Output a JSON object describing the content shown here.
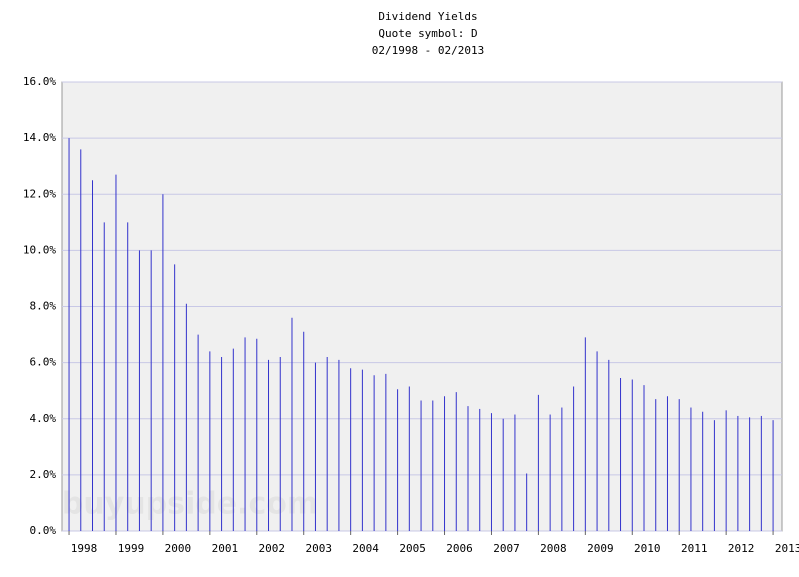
{
  "chart_data": {
    "type": "bar",
    "title": "Dividend Yields",
    "subtitle": "Quote symbol: D",
    "date_range": "02/1998 - 02/2013",
    "watermark": "buyupside.com",
    "color": "#3333cc",
    "grid": true,
    "x": [
      1998,
      1998.25,
      1998.5,
      1998.75,
      1999,
      1999.25,
      1999.5,
      1999.75,
      2000,
      2000.25,
      2000.5,
      2000.75,
      2001,
      2001.25,
      2001.5,
      2001.75,
      2002,
      2002.25,
      2002.5,
      2002.75,
      2003,
      2003.25,
      2003.5,
      2003.75,
      2004,
      2004.25,
      2004.5,
      2004.75,
      2005,
      2005.25,
      2005.5,
      2005.75,
      2006,
      2006.25,
      2006.5,
      2006.75,
      2007,
      2007.25,
      2007.5,
      2007.75,
      2008,
      2008.25,
      2008.5,
      2008.75,
      2009,
      2009.25,
      2009.5,
      2009.75,
      2010,
      2010.25,
      2010.5,
      2010.75,
      2011,
      2011.25,
      2011.5,
      2011.75,
      2012,
      2012.25,
      2012.5,
      2012.75,
      2013
    ],
    "values": [
      14.0,
      13.6,
      12.5,
      11.0,
      12.7,
      11.0,
      10.0,
      10.0,
      12.0,
      9.5,
      8.1,
      7.0,
      6.4,
      6.2,
      6.5,
      6.9,
      6.85,
      6.1,
      6.2,
      7.6,
      7.1,
      6.0,
      6.2,
      6.1,
      5.8,
      5.75,
      5.55,
      5.6,
      5.05,
      5.15,
      4.65,
      4.65,
      4.8,
      4.95,
      4.45,
      4.35,
      4.2,
      4.0,
      4.15,
      2.05,
      4.85,
      4.15,
      4.4,
      5.15,
      6.9,
      6.4,
      6.1,
      5.45,
      5.4,
      5.2,
      4.7,
      4.8,
      4.7,
      4.4,
      4.25,
      3.95,
      4.3,
      4.1,
      4.05,
      4.1,
      3.95
    ],
    "xlim": [
      1997.85,
      2013.19
    ],
    "xticks": [
      1998,
      1999,
      2000,
      2001,
      2002,
      2003,
      2004,
      2005,
      2006,
      2007,
      2008,
      2009,
      2010,
      2011,
      2012,
      2013
    ],
    "ylim": [
      0,
      16
    ],
    "yticks": [
      {
        "value": 0,
        "label": "0.0%"
      },
      {
        "value": 2,
        "label": "2.0%"
      },
      {
        "value": 4,
        "label": "4.0%"
      },
      {
        "value": 6,
        "label": "6.0%"
      },
      {
        "value": 8,
        "label": "8.0%"
      },
      {
        "value": 10,
        "label": "10.0%"
      },
      {
        "value": 12,
        "label": "12.0%"
      },
      {
        "value": 14,
        "label": "14.0%"
      },
      {
        "value": 16,
        "label": "16.0%"
      }
    ]
  }
}
